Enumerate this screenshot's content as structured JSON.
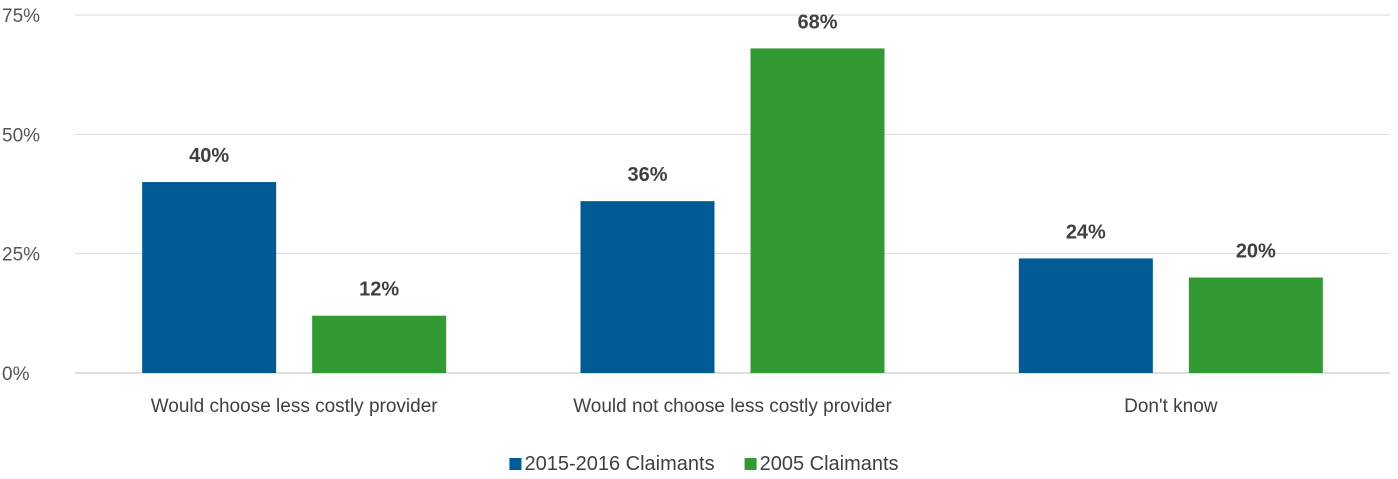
{
  "chart_data": {
    "type": "bar",
    "title": "",
    "xlabel": "",
    "ylabel": "",
    "ylim": [
      0,
      75
    ],
    "yticks": [
      0,
      25,
      50,
      75
    ],
    "ytick_labels": [
      "0%",
      "25%",
      "50%",
      "75%"
    ],
    "grid": true,
    "legend_position": "bottom",
    "categories": [
      "Would choose less costly provider",
      "Would not choose less costly provider",
      "Don't know"
    ],
    "series": [
      {
        "name": "2015-2016 Claimants",
        "color": "#005b94",
        "values": [
          40,
          36,
          24
        ],
        "labels": [
          "40%",
          "36%",
          "24%"
        ]
      },
      {
        "name": "2005 Claimants",
        "color": "#339933",
        "values": [
          12,
          68,
          20
        ],
        "labels": [
          "12%",
          "68%",
          "20%"
        ]
      }
    ]
  }
}
